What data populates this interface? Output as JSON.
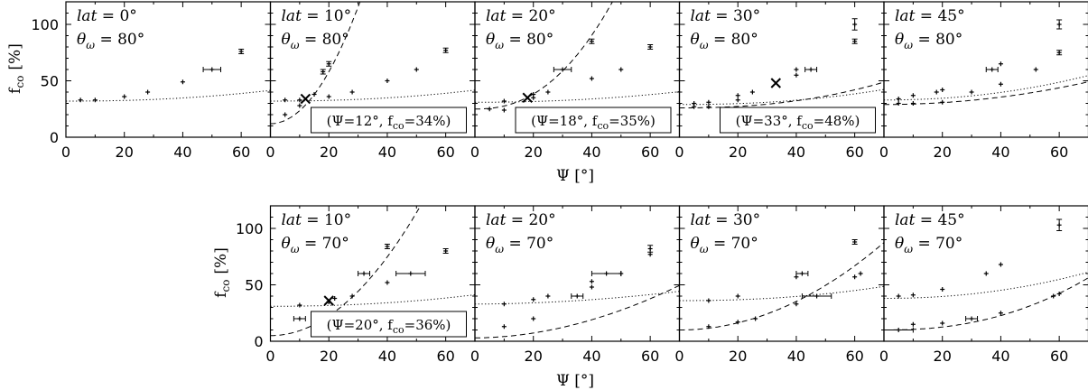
{
  "chart_data": {
    "type": "scatter",
    "xlabel": "Ψ [°]",
    "ylabel": "f",
    "ylabel_sub": "co",
    "ylabel_unit": "[%]",
    "xlim": [
      0,
      70
    ],
    "ylim": [
      0,
      120
    ],
    "xticks": [
      0,
      20,
      40,
      60
    ],
    "yticks": [
      0,
      50,
      100
    ],
    "panels": [
      {
        "row": 0,
        "col": 0,
        "lat": "0°",
        "theta": "80°",
        "series": [
          {
            "style": "dotted",
            "points": [
              [
                5,
                33
              ],
              [
                10,
                33
              ],
              [
                20,
                36
              ],
              [
                28,
                40
              ],
              [
                40,
                49
              ],
              [
                50,
                60
              ],
              [
                60,
                76
              ]
            ],
            "xerr": [
              0,
              0,
              0,
              0,
              0,
              3,
              0
            ],
            "yerr": [
              0,
              0,
              0,
              0,
              0,
              0,
              2
            ],
            "fit": [
              32,
              0.00083,
              2.2
            ]
          }
        ],
        "crossing": null
      },
      {
        "row": 0,
        "col": 1,
        "lat": "10°",
        "theta": "80°",
        "series": [
          {
            "style": "dotted",
            "points": [
              [
                5,
                33
              ],
              [
                10,
                33
              ],
              [
                20,
                36
              ],
              [
                28,
                40
              ],
              [
                40,
                50
              ],
              [
                50,
                60
              ],
              [
                60,
                77
              ]
            ],
            "xerr": [
              0,
              0,
              0,
              0,
              0,
              0,
              0
            ],
            "yerr": [
              0,
              0,
              0,
              0,
              0,
              0,
              2
            ],
            "fit": [
              32,
              0.00085,
              2.2
            ]
          },
          {
            "style": "dashed",
            "points": [
              [
                5,
                20
              ],
              [
                10,
                28
              ],
              [
                15,
                38
              ],
              [
                18,
                58
              ],
              [
                20,
                65
              ]
            ],
            "xerr": [
              0,
              0,
              0,
              0,
              0
            ],
            "yerr": [
              0,
              0,
              0,
              2,
              2
            ],
            "fit": [
              12,
              0.115,
              2.0
            ]
          }
        ],
        "crossing": {
          "x": 12,
          "y": 34,
          "label_psi": "Ψ=12°",
          "label_f": "34%"
        }
      },
      {
        "row": 0,
        "col": 2,
        "lat": "20°",
        "theta": "80°",
        "series": [
          {
            "style": "dotted",
            "points": [
              [
                10,
                32
              ],
              [
                20,
                35
              ],
              [
                25,
                40
              ],
              [
                40,
                52
              ],
              [
                50,
                60
              ],
              [
                60,
                80
              ]
            ],
            "xerr": [
              0,
              0,
              0,
              0,
              0,
              0
            ],
            "yerr": [
              0,
              0,
              0,
              0,
              0,
              2
            ],
            "fit": [
              31,
              0.00125,
              2.1
            ]
          },
          {
            "style": "dashed",
            "points": [
              [
                5,
                25
              ],
              [
                10,
                24
              ],
              [
                20,
                38
              ],
              [
                30,
                60
              ],
              [
                40,
                85
              ]
            ],
            "xerr": [
              0,
              0,
              0,
              3,
              0
            ],
            "yerr": [
              0,
              0,
              0,
              0,
              2
            ],
            "fit": [
              25,
              0.0135,
              2.3
            ]
          }
        ],
        "crossing": {
          "x": 18,
          "y": 35,
          "label_psi": "Ψ=18°",
          "label_f": "35%"
        }
      },
      {
        "row": 0,
        "col": 3,
        "lat": "30°",
        "theta": "80°",
        "series": [
          {
            "style": "dotted",
            "points": [
              [
                5,
                30
              ],
              [
                10,
                31
              ],
              [
                20,
                37
              ],
              [
                25,
                40
              ],
              [
                40,
                55
              ],
              [
                45,
                60
              ],
              [
                60,
                85
              ]
            ],
            "xerr": [
              0,
              0,
              0,
              0,
              0,
              2,
              0
            ],
            "yerr": [
              0,
              0,
              0,
              0,
              0,
              0,
              2
            ],
            "fit": [
              29,
              0.00094,
              2.25
            ]
          },
          {
            "style": "dashed",
            "points": [
              [
                5,
                27
              ],
              [
                10,
                27
              ],
              [
                20,
                33
              ],
              [
                40,
                60
              ],
              [
                60,
                100
              ]
            ],
            "xerr": [
              0,
              0,
              0,
              0,
              0
            ],
            "yerr": [
              0,
              0,
              0,
              0,
              5
            ],
            "fit": [
              26,
              0.0013,
              2.3
            ]
          }
        ],
        "crossing": {
          "x": 33,
          "y": 48,
          "label_psi": "Ψ=33°",
          "label_f": "48%"
        }
      },
      {
        "row": 0,
        "col": 4,
        "lat": "45°",
        "theta": "80°",
        "series": [
          {
            "style": "dotted",
            "points": [
              [
                5,
                34
              ],
              [
                10,
                37
              ],
              [
                18,
                40
              ],
              [
                20,
                42
              ],
              [
                37,
                60
              ],
              [
                40,
                65
              ],
              [
                60,
                100
              ]
            ],
            "xerr": [
              0,
              0,
              0,
              0,
              2,
              0,
              0
            ],
            "yerr": [
              0,
              0,
              0,
              0,
              0,
              0,
              4
            ],
            "fit": [
              33,
              0.0029,
              2.1
            ]
          },
          {
            "style": "dashed",
            "points": [
              [
                5,
                30
              ],
              [
                10,
                30
              ],
              [
                20,
                31
              ],
              [
                30,
                40
              ],
              [
                40,
                47
              ],
              [
                52,
                60
              ],
              [
                60,
                75
              ]
            ],
            "xerr": [
              0,
              0,
              0,
              0,
              0,
              0,
              0
            ],
            "yerr": [
              0,
              0,
              0,
              0,
              0,
              0,
              2
            ],
            "fit": [
              29,
              0.0041,
              2.0
            ]
          }
        ],
        "crossing": null
      },
      {
        "row": 1,
        "col": 1,
        "lat": "10°",
        "theta": "70°",
        "series": [
          {
            "style": "dotted",
            "points": [
              [
                10,
                32
              ],
              [
                20,
                35
              ],
              [
                22,
                38
              ],
              [
                28,
                40
              ],
              [
                40,
                52
              ],
              [
                48,
                60
              ],
              [
                60,
                80
              ]
            ],
            "xerr": [
              0,
              0,
              0,
              0,
              0,
              5,
              0
            ],
            "yerr": [
              0,
              0,
              0,
              0,
              0,
              0,
              2
            ],
            "fit": [
              31,
              0.0011,
              2.15
            ]
          },
          {
            "style": "dashed",
            "points": [
              [
                10,
                20
              ],
              [
                20,
                35
              ],
              [
                32,
                60
              ],
              [
                40,
                84
              ]
            ],
            "xerr": [
              2,
              0,
              2,
              0
            ],
            "yerr": [
              0,
              0,
              0,
              2
            ],
            "fit": [
              5,
              0.0436,
              2.0
            ]
          }
        ],
        "crossing": {
          "x": 20,
          "y": 36,
          "label_psi": "Ψ=20°",
          "label_f": "36%"
        }
      },
      {
        "row": 1,
        "col": 2,
        "lat": "20°",
        "theta": "70°",
        "series": [
          {
            "style": "dotted",
            "points": [
              [
                10,
                33
              ],
              [
                20,
                37
              ],
              [
                25,
                40
              ],
              [
                40,
                53
              ],
              [
                45,
                60
              ],
              [
                60,
                82
              ]
            ],
            "xerr": [
              0,
              0,
              0,
              0,
              5,
              0
            ],
            "yerr": [
              0,
              0,
              0,
              0,
              0,
              3
            ],
            "fit": [
              33,
              0.0035,
              1.9
            ]
          },
          {
            "style": "dashed",
            "points": [
              [
                10,
                13
              ],
              [
                20,
                20
              ],
              [
                35,
                40
              ],
              [
                40,
                48
              ],
              [
                50,
                60
              ],
              [
                60,
                77
              ]
            ],
            "xerr": [
              0,
              0,
              2,
              0,
              0,
              0
            ],
            "yerr": [
              0,
              0,
              0,
              0,
              0,
              0
            ],
            "fit": [
              3,
              0.0145,
              1.9
            ]
          }
        ],
        "crossing": null
      },
      {
        "row": 1,
        "col": 3,
        "lat": "30°",
        "theta": "70°",
        "series": [
          {
            "style": "dotted",
            "points": [
              [
                10,
                36
              ],
              [
                20,
                40
              ],
              [
                40,
                57
              ],
              [
                42,
                60
              ],
              [
                60,
                88
              ]
            ],
            "xerr": [
              0,
              0,
              0,
              2,
              0
            ],
            "yerr": [
              0,
              0,
              0,
              0,
              2
            ],
            "fit": [
              36,
              0.0011,
              2.2
            ]
          },
          {
            "style": "dashed",
            "points": [
              [
                10,
                13
              ],
              [
                20,
                17
              ],
              [
                26,
                20
              ],
              [
                40,
                33
              ],
              [
                47,
                40
              ],
              [
                60,
                57
              ],
              [
                62,
                60
              ]
            ],
            "xerr": [
              0,
              0,
              0,
              0,
              5,
              0,
              0
            ],
            "yerr": [
              0,
              0,
              0,
              0,
              0,
              0,
              0
            ],
            "fit": [
              10,
              0.0158,
              2.0
            ]
          }
        ],
        "crossing": null
      },
      {
        "row": 1,
        "col": 4,
        "lat": "45°",
        "theta": "70°",
        "series": [
          {
            "style": "dotted",
            "points": [
              [
                5,
                40
              ],
              [
                10,
                41
              ],
              [
                20,
                46
              ],
              [
                35,
                60
              ],
              [
                40,
                68
              ],
              [
                60,
                103
              ]
            ],
            "xerr": [
              0,
              0,
              0,
              0,
              0,
              0
            ],
            "yerr": [
              0,
              0,
              0,
              0,
              0,
              5
            ],
            "fit": [
              38,
              0.0031,
              2.1
            ]
          },
          {
            "style": "dashed",
            "points": [
              [
                5,
                10
              ],
              [
                10,
                15
              ],
              [
                20,
                16
              ],
              [
                30,
                20
              ],
              [
                40,
                25
              ],
              [
                58,
                40
              ],
              [
                60,
                42
              ]
            ],
            "xerr": [
              5,
              0,
              0,
              2,
              0,
              0,
              0
            ],
            "yerr": [
              0,
              0,
              0,
              0,
              0,
              0,
              0
            ],
            "fit": [
              10,
              0.00264,
              2.3
            ]
          }
        ],
        "crossing": null
      }
    ]
  }
}
